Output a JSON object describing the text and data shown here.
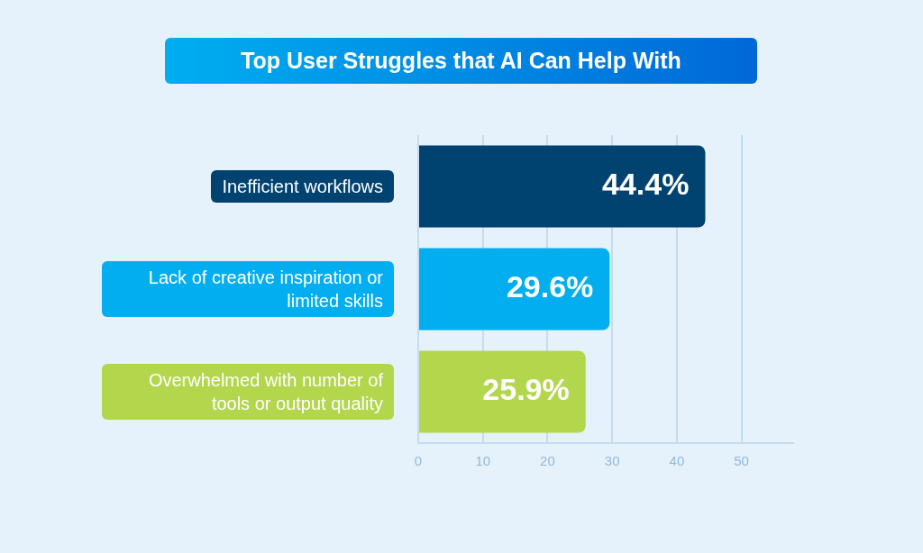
{
  "chart_data": {
    "type": "bar",
    "orientation": "horizontal",
    "title": "Top User Struggles that AI Can Help With",
    "categories": [
      "Inefficient workflows",
      "Lack of creative inspiration or limited skills",
      "Overwhelmed with number of tools or output quality"
    ],
    "values": [
      44.4,
      29.6,
      25.9
    ],
    "colors": [
      "#004370",
      "#02aef0",
      "#b3d64c"
    ],
    "value_labels": [
      "44.4%",
      "29.6%",
      "25.9%"
    ],
    "xlim": [
      0,
      58
    ],
    "xticks": [
      0,
      10,
      20,
      30,
      40,
      50
    ],
    "grid": "x",
    "legend": false
  }
}
